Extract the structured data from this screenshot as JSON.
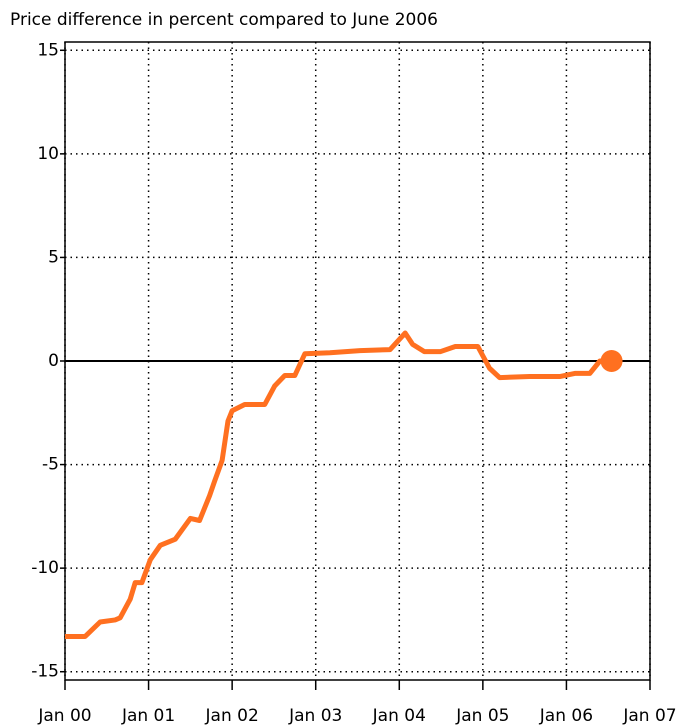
{
  "chart_data": {
    "type": "line",
    "title": "Price difference in percent compared to June 2006",
    "x": [
      2000,
      2000.24,
      2000.42,
      2000.6,
      2000.66,
      2000.78,
      2000.84,
      2000.92,
      2001.02,
      2001.14,
      2001.32,
      2001.5,
      2001.61,
      2001.73,
      2001.79,
      2001.88,
      2001.95,
      2002.0,
      2002.15,
      2002.39,
      2002.51,
      2002.63,
      2002.75,
      2002.87,
      2003.17,
      2003.53,
      2003.89,
      2004.07,
      2004.16,
      2004.3,
      2004.49,
      2004.67,
      2004.94,
      2005.08,
      2005.2,
      2005.56,
      2005.92,
      2006.1,
      2006.28,
      2006.4,
      2006.54
    ],
    "series": [
      {
        "color": "#ff7020",
        "values": [
          -13.3,
          -13.3,
          -12.6,
          -12.5,
          -12.4,
          -11.5,
          -10.7,
          -10.7,
          -9.6,
          -8.9,
          -8.6,
          -7.6,
          -7.7,
          -6.5,
          -5.8,
          -4.8,
          -2.9,
          -2.4,
          -2.1,
          -2.1,
          -1.2,
          -0.7,
          -0.7,
          0.35,
          0.4,
          0.5,
          0.55,
          1.35,
          0.8,
          0.45,
          0.45,
          0.7,
          0.7,
          -0.35,
          -0.8,
          -0.75,
          -0.75,
          -0.6,
          -0.6,
          0,
          0
        ]
      }
    ],
    "xlim": [
      2000,
      2007
    ],
    "xticks": [
      {
        "value": 2000,
        "label": "Jan 00"
      },
      {
        "value": 2001,
        "label": "Jan 01"
      },
      {
        "value": 2002,
        "label": "Jan 02"
      },
      {
        "value": 2003,
        "label": "Jan 03"
      },
      {
        "value": 2004,
        "label": "Jan 04"
      },
      {
        "value": 2005,
        "label": "Jan 05"
      },
      {
        "value": 2006,
        "label": "Jan 06"
      },
      {
        "value": 2007,
        "label": "Jan 07"
      }
    ],
    "ylim": [
      -15.4,
      15.4
    ],
    "yticks": [
      15,
      10,
      5,
      0,
      -5,
      -10,
      -15
    ],
    "grid": true
  }
}
